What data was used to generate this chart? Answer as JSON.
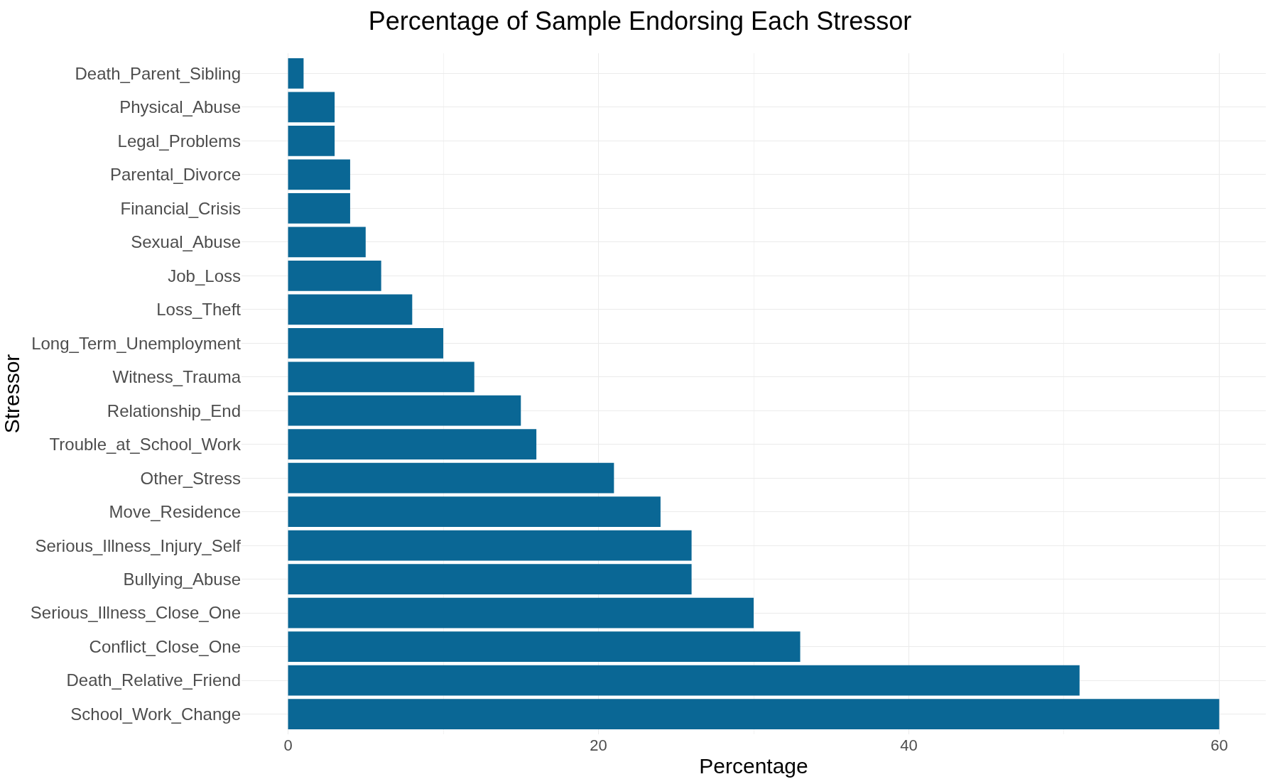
{
  "chart_data": {
    "type": "bar",
    "orientation": "horizontal",
    "title": "Percentage of Sample Endorsing Each Stressor",
    "xlabel": "Percentage",
    "ylabel": "Stressor",
    "categories": [
      "Death_Parent_Sibling",
      "Physical_Abuse",
      "Legal_Problems",
      "Parental_Divorce",
      "Financial_Crisis",
      "Sexual_Abuse",
      "Job_Loss",
      "Loss_Theft",
      "Long_Term_Unemployment",
      "Witness_Trauma",
      "Relationship_End",
      "Trouble_at_School_Work",
      "Other_Stress",
      "Move_Residence",
      "Serious_Illness_Injury_Self",
      "Bullying_Abuse",
      "Serious_Illness_Close_One",
      "Conflict_Close_One",
      "Death_Relative_Friend",
      "School_Work_Change"
    ],
    "values": [
      1,
      3,
      3,
      4,
      4,
      5,
      6,
      8,
      10,
      12,
      15,
      16,
      21,
      24,
      26,
      26,
      30,
      33,
      51,
      60
    ],
    "color": "#0a6795",
    "xlim": [
      -3,
      63
    ],
    "xticks": [
      0,
      20,
      40,
      60
    ],
    "grid": true
  }
}
